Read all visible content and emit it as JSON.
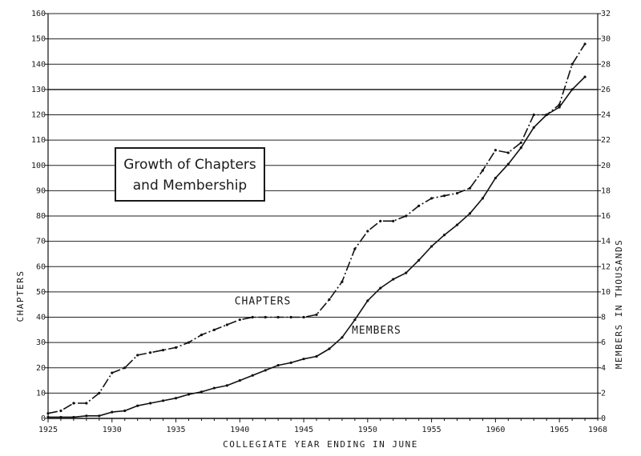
{
  "chart_data": {
    "type": "line",
    "title_lines": [
      "Growth of Chapters",
      "and Membership"
    ],
    "xlabel": "COLLEGIATE YEAR ENDING IN JUNE",
    "ylabel_left": "CHAPTERS",
    "ylabel_right": "MEMBERS IN THOUSANDS",
    "xlim": [
      1925,
      1968
    ],
    "ylim_left": [
      0,
      160
    ],
    "ylim_right": [
      0,
      32
    ],
    "x_ticks": [
      {
        "value": 1925,
        "label": "1925"
      },
      {
        "value": 1930,
        "label": "1930"
      },
      {
        "value": 1935,
        "label": "1935"
      },
      {
        "value": 1940,
        "label": "1940"
      },
      {
        "value": 1945,
        "label": "1945"
      },
      {
        "value": 1950,
        "label": "1950"
      },
      {
        "value": 1955,
        "label": "1955"
      },
      {
        "value": 1960,
        "label": "1960"
      },
      {
        "value": 1965,
        "label": "1965"
      },
      {
        "value": 1968,
        "label": "1968"
      }
    ],
    "y_left_ticks": [
      0,
      10,
      20,
      30,
      40,
      50,
      60,
      70,
      80,
      90,
      100,
      110,
      120,
      130,
      140,
      150,
      160
    ],
    "y_right_ticks": [
      0,
      2,
      4,
      6,
      8,
      10,
      12,
      14,
      16,
      18,
      20,
      22,
      24,
      26,
      28,
      30,
      32
    ],
    "grid": "horizontal",
    "series": [
      {
        "name": "CHAPTERS",
        "axis": "left",
        "style": "dash-dot",
        "x": [
          1925,
          1926,
          1927,
          1928,
          1929,
          1930,
          1931,
          1932,
          1933,
          1934,
          1935,
          1936,
          1937,
          1938,
          1939,
          1940,
          1941,
          1942,
          1943,
          1944,
          1945,
          1946,
          1947,
          1948,
          1949,
          1950,
          1951,
          1952,
          1953,
          1954,
          1955,
          1956,
          1957,
          1958,
          1959,
          1960,
          1961,
          1962,
          1963,
          1964,
          1965,
          1966,
          1967
        ],
        "values": [
          2,
          3,
          6,
          6,
          10,
          18,
          20,
          25,
          26,
          27,
          28,
          30,
          33,
          35,
          37,
          39,
          40,
          40,
          40,
          40,
          40,
          41,
          47,
          54,
          67,
          74,
          78,
          78,
          80,
          84,
          87,
          88,
          89,
          91,
          98,
          106,
          105,
          109,
          120,
          120,
          124,
          140,
          148
        ]
      },
      {
        "name": "MEMBERS",
        "axis": "right",
        "style": "solid",
        "x": [
          1925,
          1926,
          1927,
          1928,
          1929,
          1930,
          1931,
          1932,
          1933,
          1934,
          1935,
          1936,
          1937,
          1938,
          1939,
          1940,
          1941,
          1942,
          1943,
          1944,
          1945,
          1946,
          1947,
          1948,
          1949,
          1950,
          1951,
          1952,
          1953,
          1954,
          1955,
          1956,
          1957,
          1958,
          1959,
          1960,
          1961,
          1962,
          1963,
          1964,
          1965,
          1966,
          1967
        ],
        "values": [
          0.1,
          0.1,
          0.1,
          0.2,
          0.2,
          0.5,
          0.6,
          1.0,
          1.2,
          1.4,
          1.6,
          1.9,
          2.1,
          2.4,
          2.6,
          3.0,
          3.4,
          3.8,
          4.2,
          4.4,
          4.7,
          4.9,
          5.5,
          6.4,
          7.8,
          9.3,
          10.3,
          11.0,
          11.5,
          12.5,
          13.6,
          14.5,
          15.3,
          16.2,
          17.4,
          19.0,
          20.1,
          21.4,
          23.0,
          24.0,
          24.6,
          26.0,
          27.0
        ]
      }
    ],
    "annotations": [
      {
        "text": "CHAPTERS",
        "x": 1941.8,
        "y": 45,
        "axis": "left"
      },
      {
        "text": "MEMBERS",
        "x": 1950.7,
        "y": 6.7,
        "axis": "right"
      }
    ]
  }
}
